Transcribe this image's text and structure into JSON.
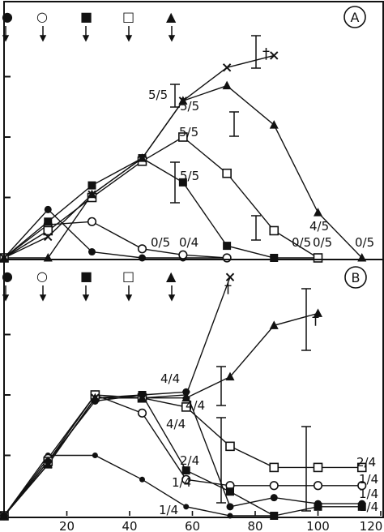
{
  "chart_data": [
    {
      "type": "line",
      "panel_label": "A",
      "treatment_markers": [
        "●",
        "○",
        "■",
        "□",
        "▲"
      ],
      "xlim": [
        0,
        120
      ],
      "series": [
        {
          "marker": "filled-circle",
          "x": [
            0,
            14,
            28,
            44,
            57,
            71
          ],
          "y": [
            0,
            0.8,
            0.1,
            0.0,
            0.0,
            0.0
          ]
        },
        {
          "marker": "open-circle",
          "x": [
            0,
            14,
            28,
            44,
            57,
            71
          ],
          "y": [
            0,
            0.55,
            0.6,
            0.15,
            0.05,
            0.0
          ]
        },
        {
          "marker": "filled-square",
          "x": [
            0,
            14,
            28,
            44,
            57,
            71,
            86,
            100
          ],
          "y": [
            0,
            0.6,
            1.2,
            1.65,
            1.25,
            0.2,
            0.0,
            0.0
          ]
        },
        {
          "marker": "open-square",
          "x": [
            0,
            14,
            28,
            44,
            57,
            71,
            86,
            100
          ],
          "y": [
            0,
            0.45,
            1.0,
            1.6,
            2.0,
            1.4,
            0.45,
            0.0
          ]
        },
        {
          "marker": "filled-triangle",
          "x": [
            0,
            14,
            28,
            44,
            57,
            71,
            86,
            100,
            114
          ],
          "y": [
            0,
            0.0,
            1.05,
            1.65,
            2.6,
            2.85,
            2.2,
            0.75,
            0.0
          ]
        },
        {
          "marker": "cross",
          "x": [
            0,
            14,
            28,
            44,
            57,
            71,
            86
          ],
          "y": [
            0,
            0.35,
            1.05,
            1.65,
            2.6,
            3.15,
            3.35
          ]
        }
      ],
      "annotations": [
        "5/5",
        "5/5",
        "5/5",
        "5/5",
        "4/5",
        "0/5",
        "0/4",
        "0/5",
        "0/5",
        "0/5",
        "†"
      ]
    },
    {
      "type": "line",
      "panel_label": "B",
      "treatment_markers": [
        "●",
        "○",
        "■",
        "□",
        "▲"
      ],
      "xlim": [
        0,
        120
      ],
      "x_ticks": [
        20,
        40,
        60,
        80,
        100,
        120
      ],
      "series": [
        {
          "marker": "filled-circle-small",
          "x": [
            0,
            14,
            29,
            44,
            58,
            72,
            86
          ],
          "y": [
            0,
            1.0,
            1.0,
            0.6,
            0.15,
            0.0,
            0.0
          ]
        },
        {
          "marker": "open-circle",
          "x": [
            0,
            14,
            29,
            44,
            58,
            72,
            86,
            100,
            114
          ],
          "y": [
            0,
            0.95,
            2.0,
            1.7,
            0.6,
            0.5,
            0.5,
            0.5,
            0.5
          ]
        },
        {
          "marker": "filled-square",
          "x": [
            0,
            14,
            29,
            44,
            58,
            72,
            86,
            100,
            114
          ],
          "y": [
            0,
            0.85,
            1.95,
            2.0,
            0.75,
            0.4,
            0.0,
            0.15,
            0.15
          ]
        },
        {
          "marker": "open-square",
          "x": [
            0,
            14,
            29,
            44,
            58,
            72,
            86,
            100,
            114
          ],
          "y": [
            0,
            0.9,
            2.0,
            1.95,
            1.8,
            1.15,
            0.8,
            0.8,
            0.8
          ]
        },
        {
          "marker": "filled-circle",
          "x": [
            0,
            14,
            29,
            44,
            58,
            72,
            86,
            100,
            114
          ],
          "y": [
            0,
            0.9,
            1.9,
            2.0,
            2.05,
            0.15,
            0.3,
            0.2,
            0.2
          ]
        },
        {
          "marker": "filled-triangle",
          "x": [
            0,
            14,
            29,
            44,
            58,
            72,
            86,
            100
          ],
          "y": [
            0,
            0.85,
            1.95,
            1.95,
            1.95,
            2.3,
            3.15,
            3.35
          ]
        },
        {
          "marker": "cross",
          "x": [
            0,
            14,
            29,
            44,
            58,
            72
          ],
          "y": [
            0,
            0.85,
            1.95,
            1.95,
            2.0,
            3.95
          ]
        }
      ],
      "annotations": [
        "4/4",
        "4/4",
        "4/4",
        "2/4",
        "1/4",
        "1/4",
        "2/4",
        "1/4",
        "1/4",
        "1/4",
        "†",
        "†"
      ]
    }
  ]
}
